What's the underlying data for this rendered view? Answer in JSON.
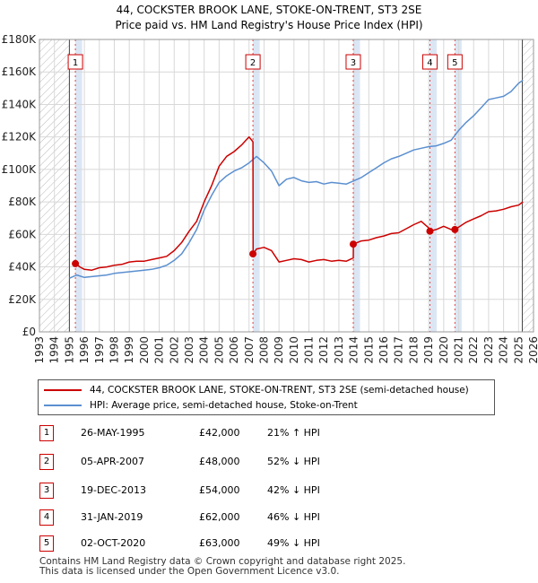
{
  "title_line1": "44, COCKSTER BROOK LANE, STOKE-ON-TRENT, ST3 2SE",
  "title_line2": "Price paid vs. HM Land Registry's House Price Index (HPI)",
  "chart_data": {
    "type": "line",
    "title": "44, COCKSTER BROOK LANE, STOKE-ON-TRENT, ST3 2SE — Price paid vs. HM Land Registry's House Price Index (HPI)",
    "xlim": [
      1993,
      2026
    ],
    "ylim": [
      0,
      180000
    ],
    "x_ticks": [
      1993,
      1994,
      1995,
      1996,
      1997,
      1998,
      1999,
      2000,
      2001,
      2002,
      2003,
      2004,
      2005,
      2006,
      2007,
      2008,
      2009,
      2010,
      2011,
      2012,
      2013,
      2014,
      2015,
      2016,
      2017,
      2018,
      2019,
      2020,
      2021,
      2022,
      2023,
      2024,
      2025,
      2026
    ],
    "y_ticks": [
      0,
      20000,
      40000,
      60000,
      80000,
      100000,
      120000,
      140000,
      160000,
      180000
    ],
    "y_tick_labels": [
      "£0",
      "£20K",
      "£40K",
      "£60K",
      "£80K",
      "£100K",
      "£120K",
      "£140K",
      "£160K",
      "£180K"
    ],
    "hatch_ranges": [
      [
        1993,
        1995.0
      ],
      [
        2025.25,
        2026
      ]
    ],
    "colors": {
      "property": "#cc0000",
      "hpi": "#5b8fd0",
      "marker_line": "#dd4444",
      "band": "#dbe6f5"
    },
    "series": [
      {
        "name": "44, COCKSTER BROOK LANE, STOKE-ON-TRENT, ST3 2SE (semi-detached house)",
        "color": "#cc0000",
        "x": [
          1995.4,
          1995.7,
          1996.0,
          1996.5,
          1997.0,
          1997.5,
          1998.0,
          1998.5,
          1999.0,
          1999.5,
          2000.0,
          2000.5,
          2001.0,
          2001.5,
          2002.0,
          2002.5,
          2003.0,
          2003.5,
          2004.0,
          2004.5,
          2005.0,
          2005.5,
          2006.0,
          2006.5,
          2006.8,
          2007.0,
          2007.26,
          2007.27,
          2007.5,
          2008.0,
          2008.5,
          2009.0,
          2009.5,
          2010.0,
          2010.5,
          2011.0,
          2011.5,
          2012.0,
          2012.5,
          2013.0,
          2013.5,
          2013.96,
          2013.97,
          2014.5,
          2015.0,
          2015.5,
          2016.0,
          2016.5,
          2017.0,
          2017.5,
          2018.0,
          2018.5,
          2019.0,
          2019.08,
          2019.5,
          2020.0,
          2020.5,
          2020.75,
          2021.0,
          2021.5,
          2022.0,
          2022.5,
          2023.0,
          2023.5,
          2024.0,
          2024.5,
          2025.0,
          2025.3
        ],
        "values": [
          42000,
          40000,
          38500,
          38000,
          39500,
          40000,
          41000,
          41500,
          43000,
          43500,
          43500,
          44500,
          45500,
          46500,
          50000,
          55000,
          62000,
          68000,
          80000,
          90000,
          102000,
          108000,
          111000,
          115000,
          118000,
          120000,
          117000,
          48000,
          51000,
          52000,
          50000,
          43000,
          44000,
          45000,
          44500,
          43000,
          44000,
          44500,
          43500,
          44000,
          43500,
          45500,
          54000,
          56000,
          56500,
          58000,
          59000,
          60500,
          61000,
          63500,
          66000,
          68000,
          64000,
          62000,
          63000,
          65000,
          63000,
          63000,
          64500,
          67500,
          69500,
          71500,
          74000,
          74500,
          75500,
          77000,
          78000,
          80000
        ]
      },
      {
        "name": "HPI: Average price, semi-detached house, Stoke-on-Trent",
        "color": "#5b8fd0",
        "x": [
          1995.0,
          1995.5,
          1996.0,
          1996.5,
          1997.0,
          1997.5,
          1998.0,
          1998.5,
          1999.0,
          1999.5,
          2000.0,
          2000.5,
          2001.0,
          2001.5,
          2002.0,
          2002.5,
          2003.0,
          2003.5,
          2004.0,
          2004.5,
          2005.0,
          2005.5,
          2006.0,
          2006.5,
          2007.0,
          2007.5,
          2008.0,
          2008.5,
          2009.0,
          2009.5,
          2010.0,
          2010.5,
          2011.0,
          2011.5,
          2012.0,
          2012.5,
          2013.0,
          2013.5,
          2014.0,
          2014.5,
          2015.0,
          2015.5,
          2016.0,
          2016.5,
          2017.0,
          2017.5,
          2018.0,
          2018.5,
          2019.0,
          2019.5,
          2020.0,
          2020.5,
          2021.0,
          2021.5,
          2022.0,
          2022.5,
          2023.0,
          2023.5,
          2024.0,
          2024.5,
          2025.0,
          2025.3
        ],
        "values": [
          33000,
          35000,
          33500,
          34000,
          34500,
          35000,
          36000,
          36500,
          37000,
          37500,
          38000,
          38500,
          39500,
          41000,
          44000,
          48000,
          55000,
          63000,
          75000,
          84000,
          92000,
          96000,
          99000,
          101000,
          104000,
          108000,
          104000,
          99000,
          90000,
          94000,
          95000,
          93000,
          92000,
          92500,
          91000,
          92000,
          91500,
          91000,
          93000,
          95000,
          98000,
          101000,
          104000,
          106500,
          108000,
          110000,
          112000,
          113000,
          114000,
          114500,
          116000,
          118000,
          124000,
          129000,
          133000,
          138000,
          143000,
          144000,
          145000,
          148000,
          153000,
          155000
        ]
      }
    ],
    "sales": [
      {
        "id": "1",
        "date": "26-MAY-1995",
        "x": 1995.4,
        "price": 42000,
        "price_label": "£42,000",
        "hpi_change": "21% ↑ HPI"
      },
      {
        "id": "2",
        "date": "05-APR-2007",
        "x": 2007.26,
        "price": 48000,
        "price_label": "£48,000",
        "hpi_change": "52% ↓ HPI"
      },
      {
        "id": "3",
        "date": "19-DEC-2013",
        "x": 2013.96,
        "price": 54000,
        "price_label": "£54,000",
        "hpi_change": "42% ↓ HPI"
      },
      {
        "id": "4",
        "date": "31-JAN-2019",
        "x": 2019.08,
        "price": 62000,
        "price_label": "£62,000",
        "hpi_change": "46% ↓ HPI"
      },
      {
        "id": "5",
        "date": "02-OCT-2020",
        "x": 2020.75,
        "price": 63000,
        "price_label": "£63,000",
        "hpi_change": "49% ↓ HPI"
      }
    ]
  },
  "legend": {
    "property_label": "44, COCKSTER BROOK LANE, STOKE-ON-TRENT, ST3 2SE (semi-detached house)",
    "hpi_label": "HPI: Average price, semi-detached house, Stoke-on-Trent"
  },
  "footer": {
    "line1": "Contains HM Land Registry data © Crown copyright and database right 2025.",
    "line2": "This data is licensed under the Open Government Licence v3.0."
  }
}
